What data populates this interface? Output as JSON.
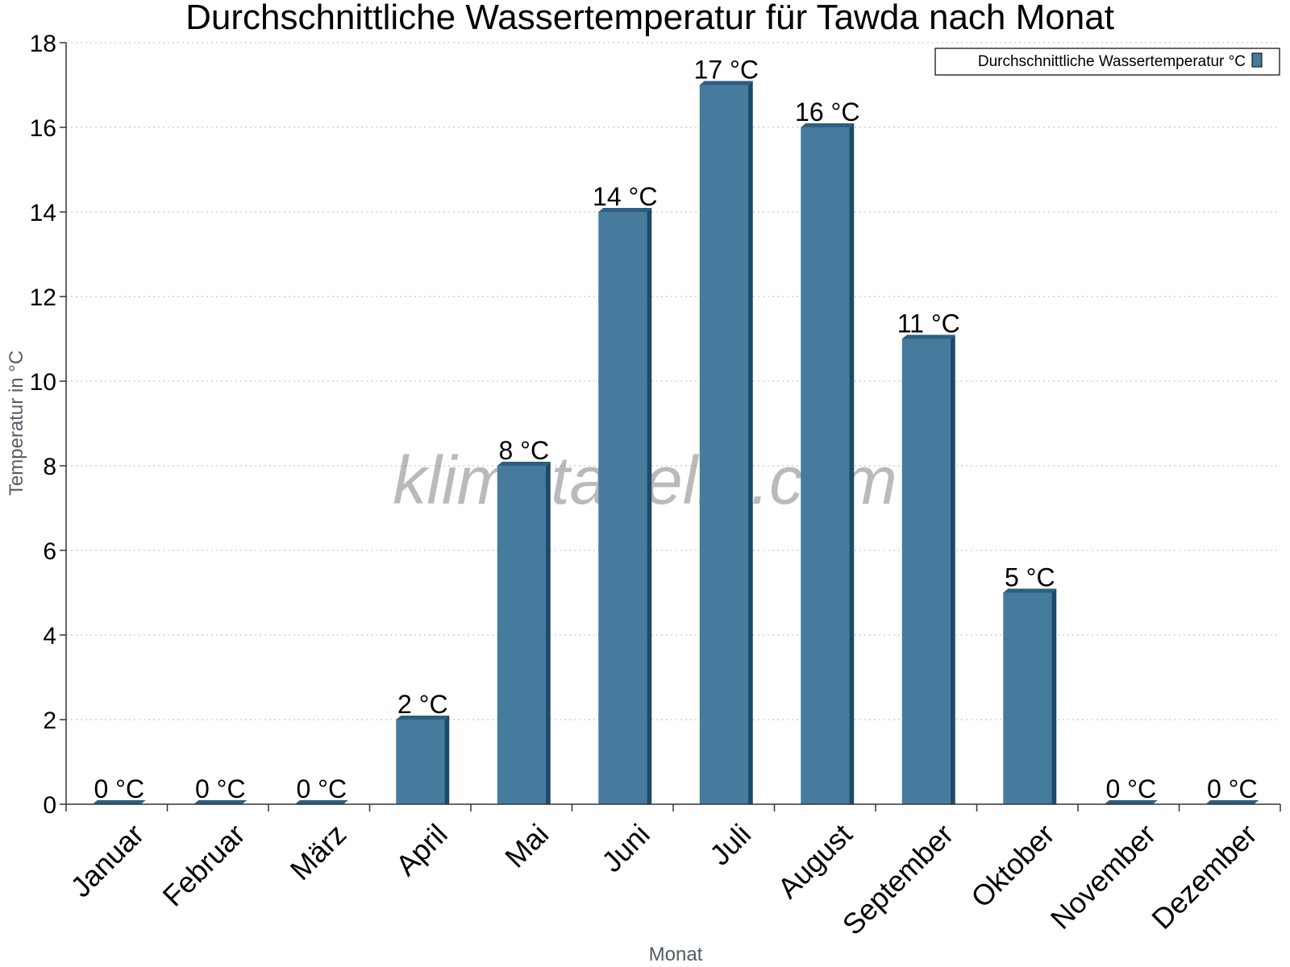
{
  "watermark": "klimatabelle.com",
  "colors": {
    "bar": "#467b9e",
    "bar_top": "#2e5f80",
    "bar_side": "#1c4a6b",
    "grid": "#c8c8c8",
    "axis": "#333333"
  },
  "chart_data": {
    "type": "bar",
    "title": "Durchschnittliche Wassertemperatur für Tawda nach Monat",
    "xlabel": "Monat",
    "ylabel": "Temperatur in °C",
    "ylim": [
      0,
      18
    ],
    "yticks": [
      0,
      2,
      4,
      6,
      8,
      10,
      12,
      14,
      16,
      18
    ],
    "grid": true,
    "legend_position": "top-right",
    "categories": [
      "Januar",
      "Februar",
      "März",
      "April",
      "Mai",
      "Juni",
      "Juli",
      "August",
      "September",
      "Oktober",
      "November",
      "Dezember"
    ],
    "series": [
      {
        "name": "Durchschnittliche Wassertemperatur °C",
        "values": [
          0,
          0,
          0,
          2,
          8,
          14,
          17,
          16,
          11,
          5,
          0,
          0
        ],
        "labels": [
          "0 °C",
          "0 °C",
          "0 °C",
          "2 °C",
          "8 °C",
          "14 °C",
          "17 °C",
          "16 °C",
          "11 °C",
          "5 °C",
          "0 °C",
          "0 °C"
        ]
      }
    ]
  }
}
